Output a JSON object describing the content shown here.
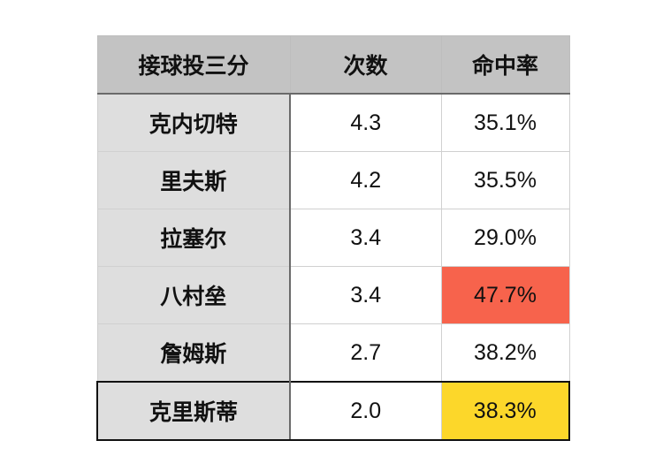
{
  "headers": [
    "接球投三分",
    "次数",
    "命中率"
  ],
  "rows": [
    {
      "name": "克内切特",
      "attempts": "4.3",
      "pct": "35.1%",
      "highlight": ""
    },
    {
      "name": "里夫斯",
      "attempts": "4.2",
      "pct": "35.5%",
      "highlight": ""
    },
    {
      "name": "拉塞尔",
      "attempts": "3.4",
      "pct": "29.0%",
      "highlight": ""
    },
    {
      "name": "八村垒",
      "attempts": "3.4",
      "pct": "47.7%",
      "highlight": "#f7634c"
    },
    {
      "name": "詹姆斯",
      "attempts": "2.7",
      "pct": "38.2%",
      "highlight": ""
    },
    {
      "name": "克里斯蒂",
      "attempts": "2.0",
      "pct": "38.3%",
      "highlight": "#fcd72a"
    }
  ]
}
